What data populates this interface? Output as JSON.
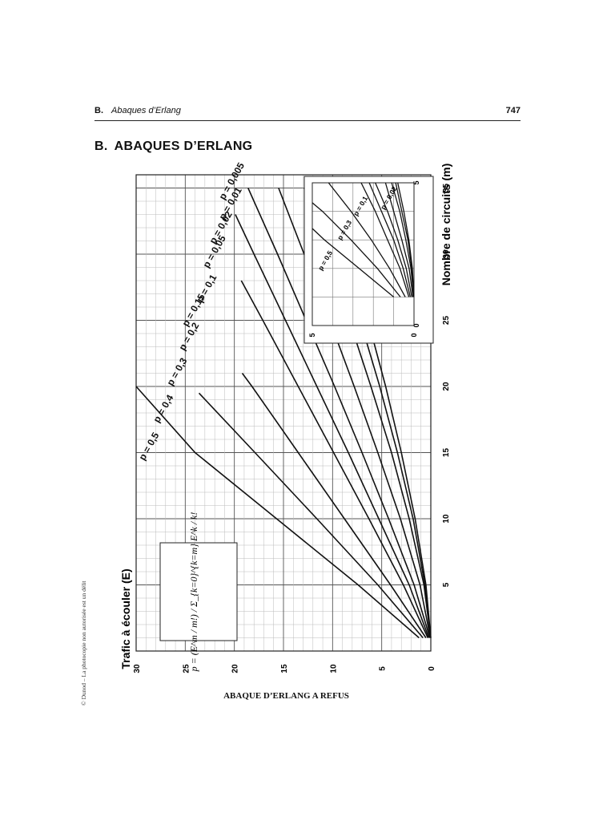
{
  "header": {
    "section_letter": "B.",
    "section_title": "Abaques d’Erlang",
    "page_number": "747"
  },
  "heading": {
    "letter": "B.",
    "title": "ABAQUES D’ERLANG"
  },
  "side_note": "© Dunod – La photocopie non autorisée est un délit",
  "caption": "ABAQUE D’ERLANG A REFUS",
  "chart_data": {
    "type": "line",
    "orientation": "rotated -90°",
    "xlabel": "Nombre de circuits (m)",
    "ylabel": "Trafic à écouler (E)",
    "xlim": [
      0,
      36
    ],
    "ylim": [
      0,
      30
    ],
    "xticks": [
      "5",
      "10",
      "15",
      "20",
      "25",
      "30",
      "35"
    ],
    "yticks": [
      "0",
      "5",
      "10",
      "15",
      "20",
      "25",
      "30"
    ],
    "grid": true,
    "formula": "p = (E^m / m!) / Σ_{k=0}^{k=m} E^k / k!",
    "series": [
      {
        "name": "p = 0,5",
        "x": [
          1,
          5,
          10,
          15,
          20
        ],
        "y": [
          1.2,
          7.4,
          15.7,
          24.0,
          32.3
        ]
      },
      {
        "name": "p = 0,4",
        "x": [
          1,
          5,
          10,
          15,
          19.5
        ],
        "y": [
          0.8,
          5.4,
          11.6,
          17.9,
          23.6
        ]
      },
      {
        "name": "p = 0,3",
        "x": [
          1,
          5,
          10,
          15,
          20,
          21
        ],
        "y": [
          0.5,
          4.1,
          8.8,
          13.5,
          18.2,
          19.2
        ]
      },
      {
        "name": "p = 0,2",
        "x": [
          1,
          5,
          10,
          15,
          20,
          25,
          28
        ],
        "y": [
          0.3,
          2.8,
          6.3,
          9.9,
          13.5,
          17.1,
          19.3
        ]
      },
      {
        "name": "p = 0,15",
        "x": [
          1,
          5,
          10,
          15,
          20,
          25,
          30,
          33
        ],
        "y": [
          0.2,
          2.2,
          5.3,
          8.4,
          11.6,
          14.8,
          18.0,
          19.9
        ]
      },
      {
        "name": "p = 0,1",
        "x": [
          1,
          5,
          10,
          15,
          20,
          25,
          30,
          35
        ],
        "y": [
          0.1,
          1.7,
          4.3,
          7.0,
          9.8,
          12.7,
          15.6,
          18.6
        ]
      },
      {
        "name": "p = 0,05",
        "x": [
          1,
          5,
          10,
          15,
          20,
          25,
          30,
          35
        ],
        "y": [
          0.05,
          1.1,
          3.1,
          5.4,
          7.8,
          10.3,
          12.9,
          15.5
        ]
      },
      {
        "name": "p = 0,02",
        "x": [
          1,
          5,
          10,
          15,
          20,
          25,
          30,
          35
        ],
        "y": [
          0.02,
          0.7,
          2.2,
          4.0,
          6.1,
          8.3,
          10.6,
          12.9
        ]
      },
      {
        "name": "p = 0,01",
        "x": [
          1,
          5,
          10,
          15,
          20,
          25,
          30,
          35
        ],
        "y": [
          0.01,
          0.6,
          1.8,
          3.4,
          5.2,
          7.2,
          9.2,
          11.3
        ]
      },
      {
        "name": "p = 0,005",
        "x": [
          1,
          5,
          10,
          15,
          20,
          25,
          30,
          35
        ],
        "y": [
          0.005,
          0.5,
          1.6,
          3.0,
          4.6,
          6.4,
          8.3,
          10.3
        ]
      }
    ],
    "inset": {
      "xlim": [
        0,
        5
      ],
      "ylim": [
        0,
        5
      ],
      "xticks": [
        "0",
        "5"
      ],
      "yticks": [
        "0",
        "5"
      ],
      "series": [
        {
          "name": "p = 0,5",
          "x": [
            1,
            2,
            3,
            3.4
          ],
          "y": [
            1.0,
            2.7,
            4.4,
            5.0
          ]
        },
        {
          "name": "p = 0,4",
          "x": [
            1,
            2,
            3,
            4,
            4.3
          ],
          "y": [
            0.67,
            1.8,
            3.1,
            4.5,
            5.0
          ]
        },
        {
          "name": "p = 0,3",
          "x": [
            1,
            2,
            3,
            4,
            5
          ],
          "y": [
            0.43,
            1.2,
            2.1,
            3.1,
            4.2
          ]
        },
        {
          "name": "p = 0,2",
          "x": [
            1,
            2,
            3,
            4,
            5
          ],
          "y": [
            0.25,
            0.69,
            1.3,
            1.9,
            2.6
          ]
        },
        {
          "name": "p = 0,15",
          "x": [
            1,
            2,
            3,
            4,
            5
          ],
          "y": [
            0.18,
            0.53,
            1.0,
            1.6,
            2.2
          ]
        },
        {
          "name": "p = 0,1",
          "x": [
            1,
            2,
            3,
            4,
            5
          ],
          "y": [
            0.11,
            0.38,
            0.8,
            1.3,
            1.9
          ]
        },
        {
          "name": "p = 0,05",
          "x": [
            1,
            2,
            3,
            4,
            5
          ],
          "y": [
            0.05,
            0.24,
            0.6,
            1.0,
            1.4
          ]
        },
        {
          "name": "p = 0,02",
          "x": [
            1,
            2,
            3,
            4,
            5
          ],
          "y": [
            0.02,
            0.15,
            0.4,
            0.7,
            1.1
          ]
        },
        {
          "name": "p = 0,01",
          "x": [
            1,
            2,
            3,
            4,
            5
          ],
          "y": [
            0.01,
            0.11,
            0.3,
            0.6,
            0.9
          ]
        },
        {
          "name": "p = 0,005",
          "x": [
            1,
            2,
            3,
            4,
            5
          ],
          "y": [
            0.005,
            0.08,
            0.25,
            0.5,
            0.8
          ]
        }
      ],
      "labels": [
        "p = 0,5",
        "p = 0,3",
        "p = 0,1",
        "p = 0,02"
      ]
    }
  }
}
